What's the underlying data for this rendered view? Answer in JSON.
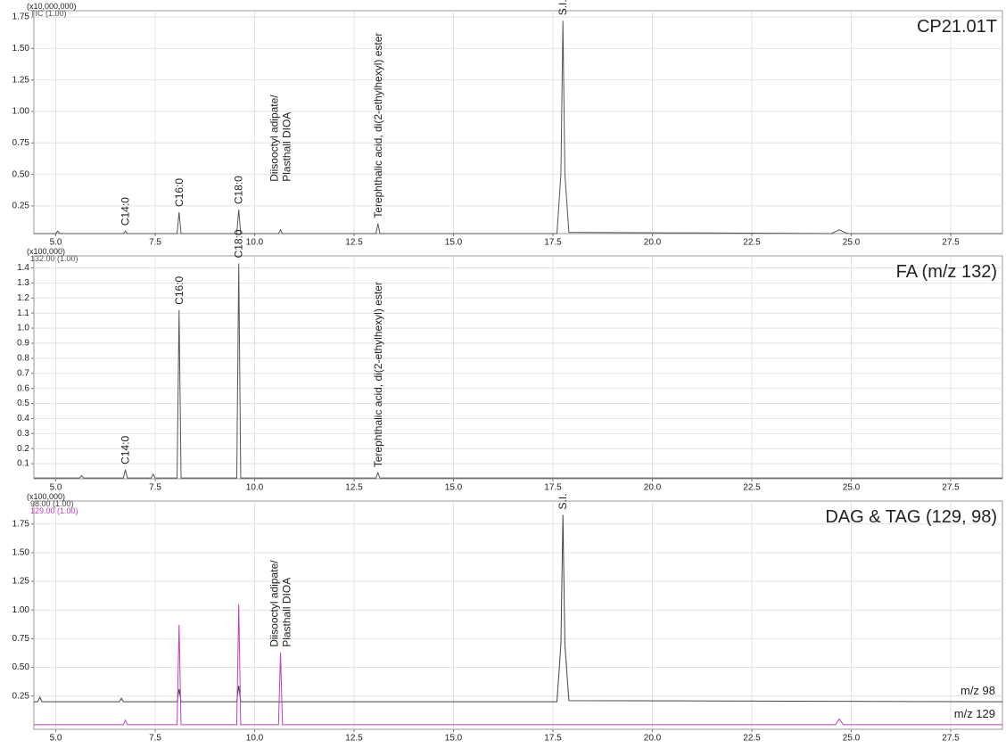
{
  "chart_data": [
    {
      "type": "line",
      "title": "CP21.01T",
      "y_unit": "(x10,000,000)",
      "xlim": [
        4.45,
        28.8
      ],
      "ylim": [
        0.03,
        1.8
      ],
      "grid": true,
      "xticks": [
        {
          "value": 5,
          "label": "5.0"
        },
        7.5,
        {
          "value": 10,
          "label": "10.0"
        },
        12.5,
        {
          "value": 15,
          "label": "15.0"
        },
        17.5,
        {
          "value": 20,
          "label": "20.0"
        },
        22.5,
        {
          "value": 25,
          "label": "25.0"
        },
        27.5
      ],
      "yticks": [
        0.25,
        {
          "value": 0.5,
          "label": "0.50"
        },
        0.75,
        {
          "value": 1,
          "label": "1.00"
        },
        1.25,
        {
          "value": 1.5,
          "label": "1.50"
        },
        1.75
      ],
      "series": [
        {
          "name": "TIC (1.00)",
          "color": "#555555",
          "x": [
            4.45,
            5.0,
            5.05,
            5.1,
            6.7,
            6.75,
            6.8,
            8.05,
            8.1,
            8.15,
            9.55,
            9.6,
            9.65,
            10.6,
            10.65,
            10.7,
            13.05,
            13.1,
            13.15,
            17.6,
            17.7,
            17.75,
            17.8,
            17.9,
            24.5,
            24.7,
            24.9,
            28.8
          ],
          "values": [
            0.03,
            0.03,
            0.05,
            0.03,
            0.03,
            0.05,
            0.03,
            0.03,
            0.2,
            0.03,
            0.03,
            0.22,
            0.03,
            0.03,
            0.06,
            0.03,
            0.03,
            0.11,
            0.03,
            0.03,
            0.5,
            1.72,
            0.5,
            0.04,
            0.03,
            0.06,
            0.03,
            0.03
          ]
        }
      ],
      "annotations": [
        {
          "lines": [
            "C14:0"
          ],
          "x": 6.75,
          "y": 0.05
        },
        {
          "lines": [
            "C16:0"
          ],
          "x": 8.1,
          "y": 0.2
        },
        {
          "lines": [
            "C18:0"
          ],
          "x": 9.6,
          "y": 0.22
        },
        {
          "lines": [
            "Diisooctyl adipate/",
            "Plasthall DIOA"
          ],
          "x": 10.65,
          "y": 0.4
        },
        {
          "lines": [
            "Terephthalic acid, di(2-ethylhexyl) ester"
          ],
          "x": 13.1,
          "y": 0.11
        },
        {
          "lines": [
            "S.I."
          ],
          "x": 17.75,
          "y": 1.72
        }
      ]
    },
    {
      "type": "line",
      "title": "FA (m/z 132)",
      "y_unit": "(x100,000)",
      "xlim": [
        4.45,
        28.8
      ],
      "ylim": [
        0,
        1.48
      ],
      "grid": true,
      "xticks": [
        {
          "value": 5,
          "label": "5.0"
        },
        7.5,
        {
          "value": 10,
          "label": "10.0"
        },
        12.5,
        {
          "value": 15,
          "label": "15.0"
        },
        17.5,
        {
          "value": 20,
          "label": "20.0"
        },
        22.5,
        {
          "value": 25,
          "label": "25.0"
        },
        27.5
      ],
      "yticks": [
        0.1,
        0.2,
        0.3,
        0.4,
        0.5,
        0.6,
        0.7,
        0.8,
        0.9,
        {
          "value": 1,
          "label": "1.0"
        },
        1.1,
        1.2,
        1.3,
        1.4
      ],
      "series": [
        {
          "name": "132.00 (1.00)",
          "color": "#555555",
          "x": [
            4.45,
            5.6,
            5.65,
            5.7,
            6.7,
            6.75,
            6.8,
            7.4,
            7.45,
            7.5,
            8.05,
            8.1,
            8.15,
            9.55,
            9.6,
            9.65,
            13.05,
            13.1,
            13.15,
            28.8
          ],
          "values": [
            0.005,
            0.005,
            0.02,
            0.005,
            0.005,
            0.06,
            0.005,
            0.005,
            0.03,
            0.005,
            0.005,
            1.12,
            0.005,
            0.005,
            1.43,
            0.005,
            0.005,
            0.04,
            0.005,
            0.005
          ]
        }
      ],
      "annotations": [
        {
          "lines": [
            "C14:0"
          ],
          "x": 6.75,
          "y": 0.06
        },
        {
          "lines": [
            "C16:0"
          ],
          "x": 8.1,
          "y": 1.12
        },
        {
          "lines": [
            "C18:0"
          ],
          "x": 9.6,
          "y": 1.43
        },
        {
          "lines": [
            "Terephthalic acid, di(2-ethylhexyl) ester"
          ],
          "x": 13.1,
          "y": 0.04
        }
      ]
    },
    {
      "type": "line",
      "title": "DAG & TAG (129, 98)",
      "y_unit": "(x100,000)",
      "xlim": [
        4.45,
        28.8
      ],
      "ylim": [
        -0.04,
        1.95
      ],
      "grid": true,
      "xticks": [
        {
          "value": 5,
          "label": "5.0"
        },
        7.5,
        {
          "value": 10,
          "label": "10.0"
        },
        12.5,
        {
          "value": 15,
          "label": "15.0"
        },
        17.5,
        {
          "value": 20,
          "label": "20.0"
        },
        22.5,
        {
          "value": 25,
          "label": "25.0"
        },
        27.5
      ],
      "yticks": [
        0.25,
        {
          "value": 0.5,
          "label": "0.50"
        },
        0.75,
        {
          "value": 1,
          "label": "1.00"
        },
        1.25,
        {
          "value": 1.5,
          "label": "1.50"
        },
        1.75
      ],
      "series": [
        {
          "name": "98.00 (1.00)",
          "trace_label": "m/z  98",
          "color": "#444444",
          "x": [
            4.45,
            4.55,
            4.6,
            4.65,
            6.6,
            6.65,
            6.7,
            8.05,
            8.1,
            8.15,
            9.55,
            9.6,
            9.65,
            17.6,
            17.7,
            17.75,
            17.8,
            17.9,
            28.8
          ],
          "values": [
            0.2,
            0.2,
            0.24,
            0.2,
            0.2,
            0.23,
            0.2,
            0.2,
            0.31,
            0.2,
            0.2,
            0.34,
            0.2,
            0.2,
            0.7,
            1.83,
            0.7,
            0.21,
            0.2
          ]
        },
        {
          "name": "129.00 (1.00)",
          "trace_label": "m/z  129",
          "color": "#c03cc0",
          "x": [
            4.45,
            6.7,
            6.75,
            6.8,
            8.05,
            8.1,
            8.15,
            9.55,
            9.6,
            9.65,
            10.6,
            10.65,
            10.7,
            24.6,
            24.7,
            24.8,
            28.8
          ],
          "values": [
            0,
            0,
            0.04,
            0,
            0,
            0.87,
            0,
            0,
            1.05,
            0,
            0,
            0.63,
            0,
            0,
            0.05,
            0,
            0
          ]
        }
      ],
      "annotations": [
        {
          "lines": [
            "Diisooctyl adipate/",
            "Plasthall DIOA"
          ],
          "x": 10.65,
          "y": 0.63
        },
        {
          "lines": [
            "S.I."
          ],
          "x": 17.75,
          "y": 1.83
        }
      ]
    }
  ]
}
